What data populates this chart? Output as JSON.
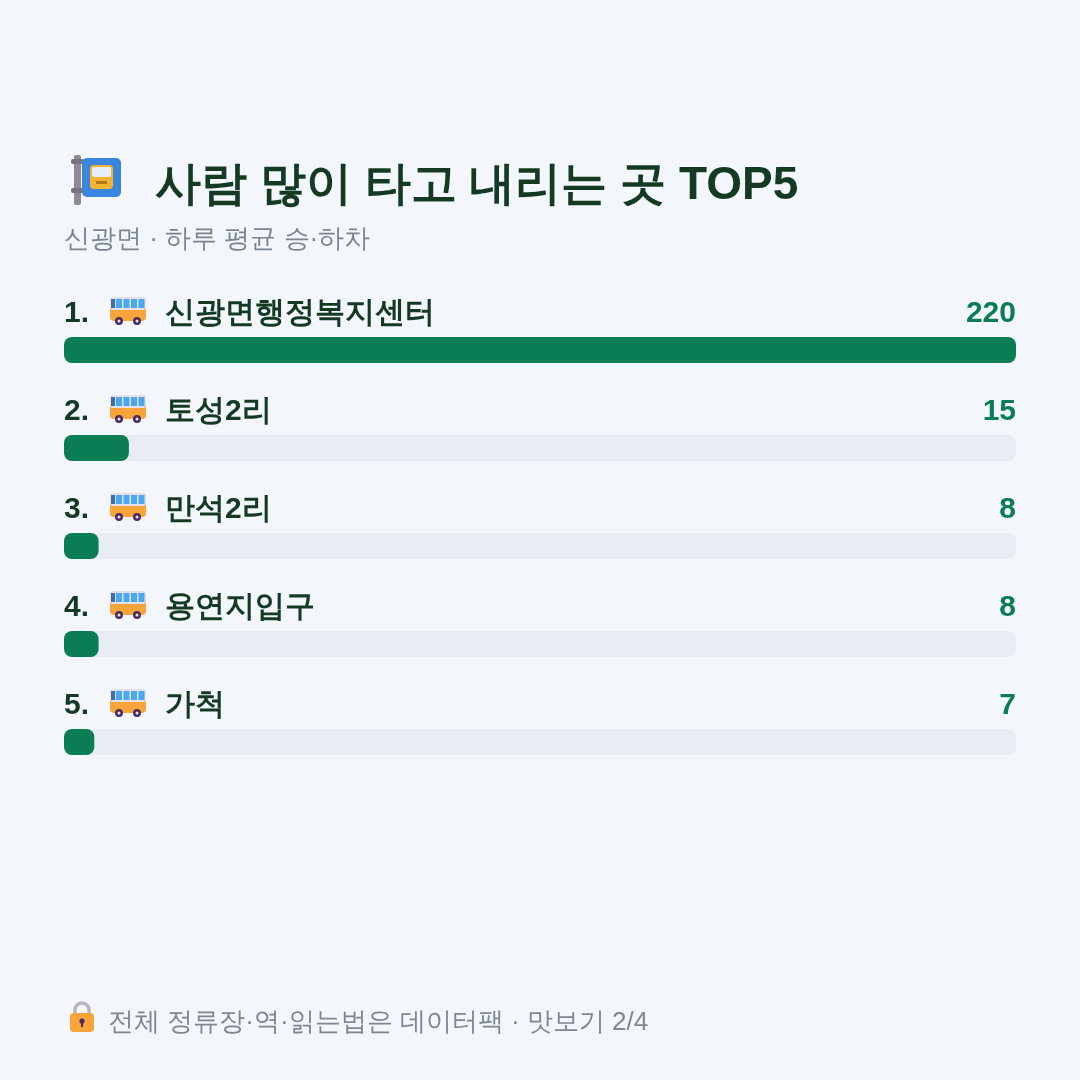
{
  "chart_data": {
    "type": "bar",
    "orientation": "horizontal",
    "title": "사람 많이 타고 내리는 곳 TOP5",
    "subtitle": "신광면 · 하루 평균 승·하차",
    "categories": [
      "1. 신광면행정복지센터",
      "2. 토성2리",
      "3. 만석2리",
      "4. 용연지입구",
      "5. 가척"
    ],
    "values": [
      220,
      15,
      8,
      8,
      7
    ],
    "color": "#0a7d55",
    "data_labels": true,
    "annotations": [
      "전체 정류장·역·읽는법은 데이터팩 · 맛보기 2/4"
    ]
  }
}
